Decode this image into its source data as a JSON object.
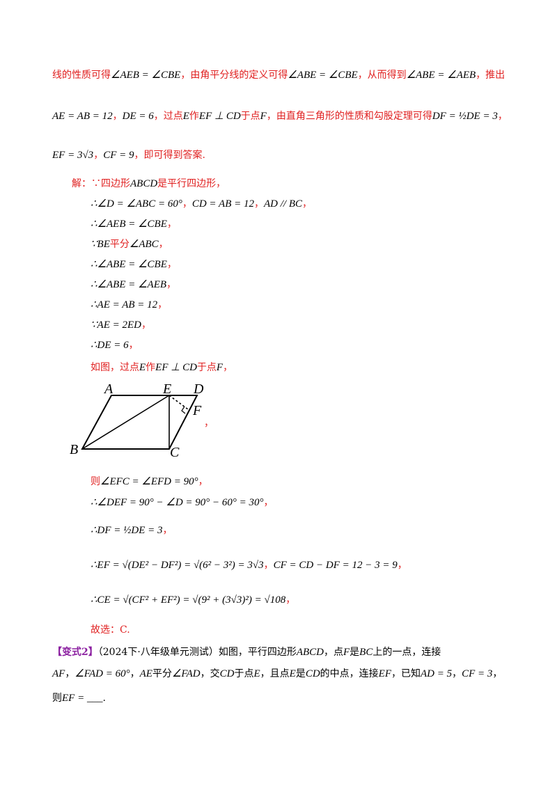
{
  "analysis": [
    [
      {
        "text": "线的性质可得",
        "color": "#e02020"
      },
      {
        "text": "∠AEB = ∠CBE",
        "color": "#000000"
      },
      {
        "text": "，由角平分线的定义可得",
        "color": "#e02020"
      },
      {
        "text": "∠ABE = ∠CBE",
        "color": "#000000"
      },
      {
        "text": "，从而得到",
        "color": "#e02020"
      },
      {
        "text": "∠ABE = ∠AEB",
        "color": "#000000"
      },
      {
        "text": "，推出",
        "color": "#e02020"
      }
    ],
    [
      {
        "text": "AE = AB = 12",
        "color": "#000000"
      },
      {
        "text": "，",
        "color": "#e02020"
      },
      {
        "text": "DE = 6",
        "color": "#000000"
      },
      {
        "text": "，过点",
        "color": "#e02020"
      },
      {
        "text": "E",
        "color": "#000000"
      },
      {
        "text": "作",
        "color": "#e02020"
      },
      {
        "text": "EF ⊥ CD",
        "color": "#000000"
      },
      {
        "text": "于点",
        "color": "#e02020"
      },
      {
        "text": "F",
        "color": "#000000"
      },
      {
        "text": "，由直角三角形的性质和勾股定理可得",
        "color": "#e02020"
      },
      {
        "text": "DF = ½DE = 3",
        "color": "#000000"
      },
      {
        "text": "，",
        "color": "#e02020"
      }
    ],
    [
      {
        "text": "EF = 3√3",
        "color": "#000000"
      },
      {
        "text": "，",
        "color": "#e02020"
      },
      {
        "text": "CF = 9",
        "color": "#000000"
      },
      {
        "text": "，即可得到答案.",
        "color": "#e02020"
      }
    ]
  ],
  "solution": [
    [
      {
        "text": "解：∵四边形",
        "color": "#e02020"
      },
      {
        "text": "ABCD",
        "color": "#000000"
      },
      {
        "text": "是平行四边形，",
        "color": "#e02020"
      }
    ],
    [
      {
        "text": "∴∠D = ∠ABC = 60°",
        "color": "#000000"
      },
      {
        "text": "，",
        "color": "#e02020"
      },
      {
        "text": "CD = AB = 12",
        "color": "#000000"
      },
      {
        "text": "，",
        "color": "#e02020"
      },
      {
        "text": "AD // BC",
        "color": "#000000"
      },
      {
        "text": "，",
        "color": "#e02020"
      }
    ],
    [
      {
        "text": "∴∠AEB = ∠CBE",
        "color": "#000000"
      },
      {
        "text": "，",
        "color": "#e02020"
      }
    ],
    [
      {
        "text": "∵BE",
        "color": "#000000"
      },
      {
        "text": "平分",
        "color": "#e02020"
      },
      {
        "text": "∠ABC",
        "color": "#000000"
      },
      {
        "text": "，",
        "color": "#e02020"
      }
    ],
    [
      {
        "text": "∴∠ABE = ∠CBE",
        "color": "#000000"
      },
      {
        "text": "，",
        "color": "#e02020"
      }
    ],
    [
      {
        "text": "∴∠ABE = ∠AEB",
        "color": "#000000"
      },
      {
        "text": "，",
        "color": "#e02020"
      }
    ],
    [
      {
        "text": "∴AE = AB = 12",
        "color": "#000000"
      },
      {
        "text": "，",
        "color": "#e02020"
      }
    ],
    [
      {
        "text": "∵AE = 2ED",
        "color": "#000000"
      },
      {
        "text": "，",
        "color": "#e02020"
      }
    ],
    [
      {
        "text": "∴DE = 6",
        "color": "#000000"
      },
      {
        "text": "，",
        "color": "#e02020"
      }
    ],
    [
      {
        "text": "如图，过点",
        "color": "#e02020"
      },
      {
        "text": "E",
        "color": "#000000"
      },
      {
        "text": "作",
        "color": "#e02020"
      },
      {
        "text": "EF ⊥ CD",
        "color": "#000000"
      },
      {
        "text": "于点",
        "color": "#e02020"
      },
      {
        "text": "F",
        "color": "#000000"
      },
      {
        "text": "，",
        "color": "#e02020"
      }
    ],
    [
      {
        "text": "则",
        "color": "#e02020"
      },
      {
        "text": "∠EFC = ∠EFD = 90°",
        "color": "#000000"
      },
      {
        "text": "，",
        "color": "#e02020"
      }
    ],
    [
      {
        "text": "∴∠DEF = 90° − ∠D = 90° − 60° = 30°",
        "color": "#000000"
      },
      {
        "text": "，",
        "color": "#e02020"
      }
    ],
    [
      {
        "text": "∴DF = ½DE = 3",
        "color": "#000000"
      },
      {
        "text": "，",
        "color": "#e02020"
      }
    ],
    [
      {
        "text": "∴EF = √(DE² − DF²) = √(6² − 3²) = 3√3",
        "color": "#000000"
      },
      {
        "text": "，",
        "color": "#e02020"
      },
      {
        "text": "CF = CD − DF = 12 − 3 = 9",
        "color": "#000000"
      },
      {
        "text": "，",
        "color": "#e02020"
      }
    ],
    [
      {
        "text": "∴CE = √(CF² + EF²) = √(9² + (3√3)²) = √108",
        "color": "#000000"
      },
      {
        "text": "，",
        "color": "#e02020"
      }
    ],
    [
      {
        "text": "故选：C.",
        "color": "#e02020"
      }
    ]
  ],
  "figure": {
    "labels": [
      "A",
      "E",
      "D",
      "F",
      "B",
      "C"
    ],
    "trailing": "，"
  },
  "variant": [
    [
      {
        "text": "【变式2】",
        "color": "#8b1fa0"
      },
      {
        "text": "（2024下·八年级单元测试）如图，平行四边形",
        "color": "#000000"
      },
      {
        "text": "ABCD",
        "color": "#000000"
      },
      {
        "text": "，点",
        "color": "#000000"
      },
      {
        "text": "F",
        "color": "#000000"
      },
      {
        "text": "是",
        "color": "#000000"
      },
      {
        "text": "BC",
        "color": "#000000"
      },
      {
        "text": "上的一点，连接",
        "color": "#000000"
      }
    ],
    [
      {
        "text": "AF",
        "color": "#000000"
      },
      {
        "text": "，",
        "color": "#000000"
      },
      {
        "text": "∠FAD = 60°",
        "color": "#000000"
      },
      {
        "text": "，",
        "color": "#000000"
      },
      {
        "text": "AE",
        "color": "#000000"
      },
      {
        "text": "平分",
        "color": "#000000"
      },
      {
        "text": "∠FAD",
        "color": "#000000"
      },
      {
        "text": "，交",
        "color": "#000000"
      },
      {
        "text": "CD",
        "color": "#000000"
      },
      {
        "text": "于点",
        "color": "#000000"
      },
      {
        "text": "E",
        "color": "#000000"
      },
      {
        "text": "，且点",
        "color": "#000000"
      },
      {
        "text": "E",
        "color": "#000000"
      },
      {
        "text": "是",
        "color": "#000000"
      },
      {
        "text": "CD",
        "color": "#000000"
      },
      {
        "text": "的中点，连接",
        "color": "#000000"
      },
      {
        "text": "EF",
        "color": "#000000"
      },
      {
        "text": "，已知",
        "color": "#000000"
      },
      {
        "text": "AD = 5",
        "color": "#000000"
      },
      {
        "text": "，",
        "color": "#000000"
      },
      {
        "text": "CF = 3",
        "color": "#000000"
      },
      {
        "text": "，",
        "color": "#000000"
      }
    ],
    [
      {
        "text": "则",
        "color": "#000000"
      },
      {
        "text": "EF = ___",
        "color": "#000000"
      },
      {
        "text": ".",
        "color": "#000000"
      }
    ]
  ]
}
